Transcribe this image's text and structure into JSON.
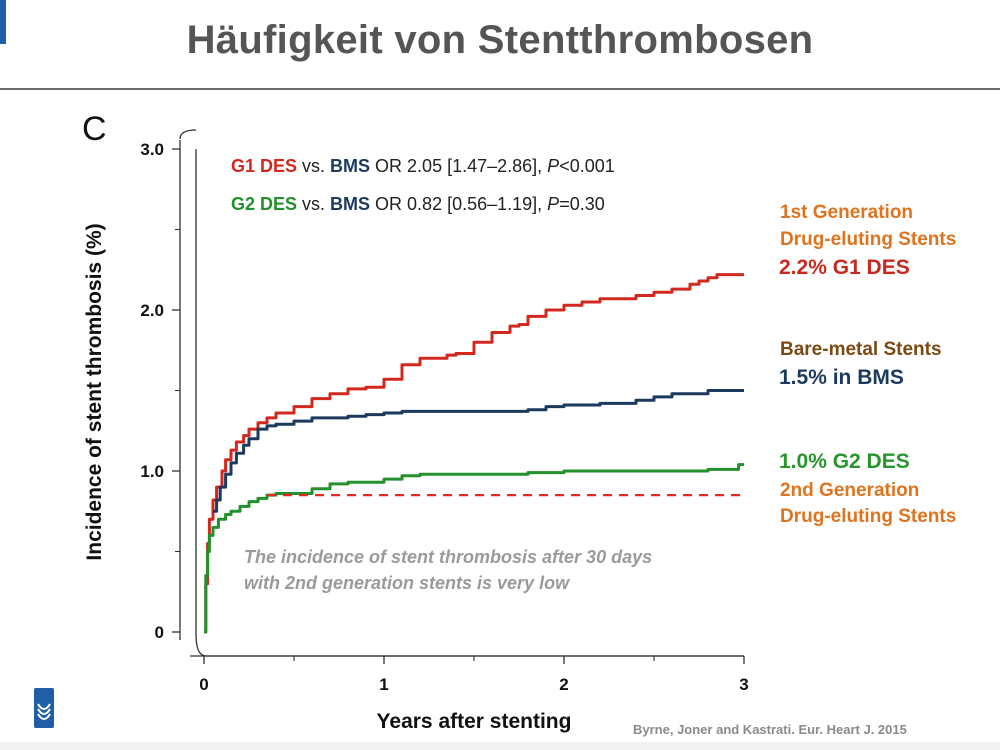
{
  "slide": {
    "title": "Häufigkeit von Stentthrombosen",
    "citation": "Byrne, Joner and Kastrati. Eur. Heart J. 2015",
    "logo_icon": "university-logo-icon"
  },
  "side_labels": {
    "g1_gen": [
      "1st Generation",
      "Drug-eluting Stents"
    ],
    "g1_value": "2.2% G1 DES",
    "bms_title": "Bare-metal Stents",
    "bms_value": "1.5% in BMS",
    "g2_value": "1.0% G2 DES",
    "g2_gen": [
      "2nd Generation",
      "Drug-eluting Stents"
    ]
  },
  "chart_data": {
    "type": "line",
    "panel_label": "C",
    "xlabel": "Years after stenting",
    "ylabel": "Incidence of stent thrombosis (%)",
    "xlim": [
      0,
      3
    ],
    "ylim": [
      0,
      3.0
    ],
    "x_ticks": [
      0,
      1,
      2,
      3
    ],
    "x_tick_labels": [
      "0",
      "1",
      "2",
      "3"
    ],
    "x_minor_ticks": [
      0.5,
      1.5,
      2.5
    ],
    "y_ticks": [
      0,
      1.0,
      2.0,
      3.0
    ],
    "y_tick_labels": [
      "0",
      "1.0",
      "2.0",
      "3.0"
    ],
    "y_minor_ticks": [
      0.5,
      1.5,
      2.5
    ],
    "grid": false,
    "colors": {
      "G1": "#d2281e",
      "BMS": "#1b3a5e",
      "G2": "#23902b",
      "dashed": "#e8281e",
      "axis": "#333333"
    },
    "legend": {
      "line1": {
        "a": "G1 DES",
        "vs": " vs. ",
        "b": "BMS",
        "rest": " OR 2.05 [1.47–2.86], ",
        "p": "P",
        "pval": "<0.001"
      },
      "line2": {
        "a": "G2 DES",
        "vs": " vs. ",
        "b": "BMS",
        "rest": " OR 0.82 [0.56–1.19], ",
        "p": "P",
        "pval": "=0.30"
      }
    },
    "annotation": [
      "The incidence of stent thrombosis after 30 days",
      "with 2nd generation stents is very low"
    ],
    "series": [
      {
        "key": "G1",
        "step": true,
        "points": [
          [
            0,
            0
          ],
          [
            0.01,
            0.3
          ],
          [
            0.02,
            0.55
          ],
          [
            0.03,
            0.7
          ],
          [
            0.05,
            0.82
          ],
          [
            0.07,
            0.9
          ],
          [
            0.1,
            1.0
          ],
          [
            0.12,
            1.07
          ],
          [
            0.15,
            1.13
          ],
          [
            0.18,
            1.18
          ],
          [
            0.22,
            1.22
          ],
          [
            0.25,
            1.26
          ],
          [
            0.3,
            1.3
          ],
          [
            0.35,
            1.33
          ],
          [
            0.4,
            1.36
          ],
          [
            0.5,
            1.4
          ],
          [
            0.6,
            1.45
          ],
          [
            0.7,
            1.48
          ],
          [
            0.8,
            1.51
          ],
          [
            0.9,
            1.52
          ],
          [
            1.0,
            1.57
          ],
          [
            1.1,
            1.66
          ],
          [
            1.2,
            1.7
          ],
          [
            1.35,
            1.72
          ],
          [
            1.4,
            1.73
          ],
          [
            1.5,
            1.8
          ],
          [
            1.6,
            1.86
          ],
          [
            1.7,
            1.9
          ],
          [
            1.75,
            1.91
          ],
          [
            1.8,
            1.96
          ],
          [
            1.9,
            2.0
          ],
          [
            2.0,
            2.03
          ],
          [
            2.1,
            2.05
          ],
          [
            2.2,
            2.07
          ],
          [
            2.3,
            2.07
          ],
          [
            2.4,
            2.09
          ],
          [
            2.5,
            2.11
          ],
          [
            2.6,
            2.13
          ],
          [
            2.7,
            2.16
          ],
          [
            2.75,
            2.18
          ],
          [
            2.8,
            2.2
          ],
          [
            2.85,
            2.22
          ],
          [
            3.0,
            2.22
          ]
        ]
      },
      {
        "key": "BMS",
        "step": true,
        "points": [
          [
            0.05,
            0.75
          ],
          [
            0.07,
            0.82
          ],
          [
            0.09,
            0.9
          ],
          [
            0.12,
            0.98
          ],
          [
            0.15,
            1.05
          ],
          [
            0.18,
            1.11
          ],
          [
            0.22,
            1.16
          ],
          [
            0.25,
            1.2
          ],
          [
            0.3,
            1.26
          ],
          [
            0.35,
            1.28
          ],
          [
            0.4,
            1.29
          ],
          [
            0.5,
            1.31
          ],
          [
            0.6,
            1.33
          ],
          [
            0.7,
            1.33
          ],
          [
            0.8,
            1.34
          ],
          [
            0.9,
            1.35
          ],
          [
            1.0,
            1.36
          ],
          [
            1.1,
            1.37
          ],
          [
            1.4,
            1.37
          ],
          [
            1.5,
            1.37
          ],
          [
            1.8,
            1.38
          ],
          [
            1.9,
            1.4
          ],
          [
            2.0,
            1.41
          ],
          [
            2.2,
            1.42
          ],
          [
            2.4,
            1.44
          ],
          [
            2.5,
            1.46
          ],
          [
            2.6,
            1.48
          ],
          [
            2.8,
            1.5
          ],
          [
            3.0,
            1.5
          ]
        ]
      },
      {
        "key": "G2",
        "step": true,
        "points": [
          [
            0,
            0
          ],
          [
            0.01,
            0.35
          ],
          [
            0.02,
            0.5
          ],
          [
            0.03,
            0.6
          ],
          [
            0.05,
            0.65
          ],
          [
            0.08,
            0.7
          ],
          [
            0.12,
            0.73
          ],
          [
            0.15,
            0.75
          ],
          [
            0.2,
            0.78
          ],
          [
            0.25,
            0.81
          ],
          [
            0.3,
            0.83
          ],
          [
            0.35,
            0.85
          ],
          [
            0.4,
            0.86
          ],
          [
            0.5,
            0.86
          ],
          [
            0.6,
            0.89
          ],
          [
            0.7,
            0.92
          ],
          [
            0.8,
            0.93
          ],
          [
            0.9,
            0.93
          ],
          [
            1.0,
            0.95
          ],
          [
            1.1,
            0.97
          ],
          [
            1.2,
            0.98
          ],
          [
            1.4,
            0.98
          ],
          [
            1.6,
            0.98
          ],
          [
            1.8,
            0.99
          ],
          [
            2.0,
            1.0
          ],
          [
            2.2,
            1.0
          ],
          [
            2.5,
            1.0
          ],
          [
            2.8,
            1.01
          ],
          [
            2.97,
            1.04
          ],
          [
            3.0,
            1.04
          ]
        ]
      },
      {
        "key": "dashed",
        "step": false,
        "dashed": true,
        "points": [
          [
            0.35,
            0.85
          ],
          [
            3.0,
            0.85
          ]
        ]
      }
    ]
  }
}
